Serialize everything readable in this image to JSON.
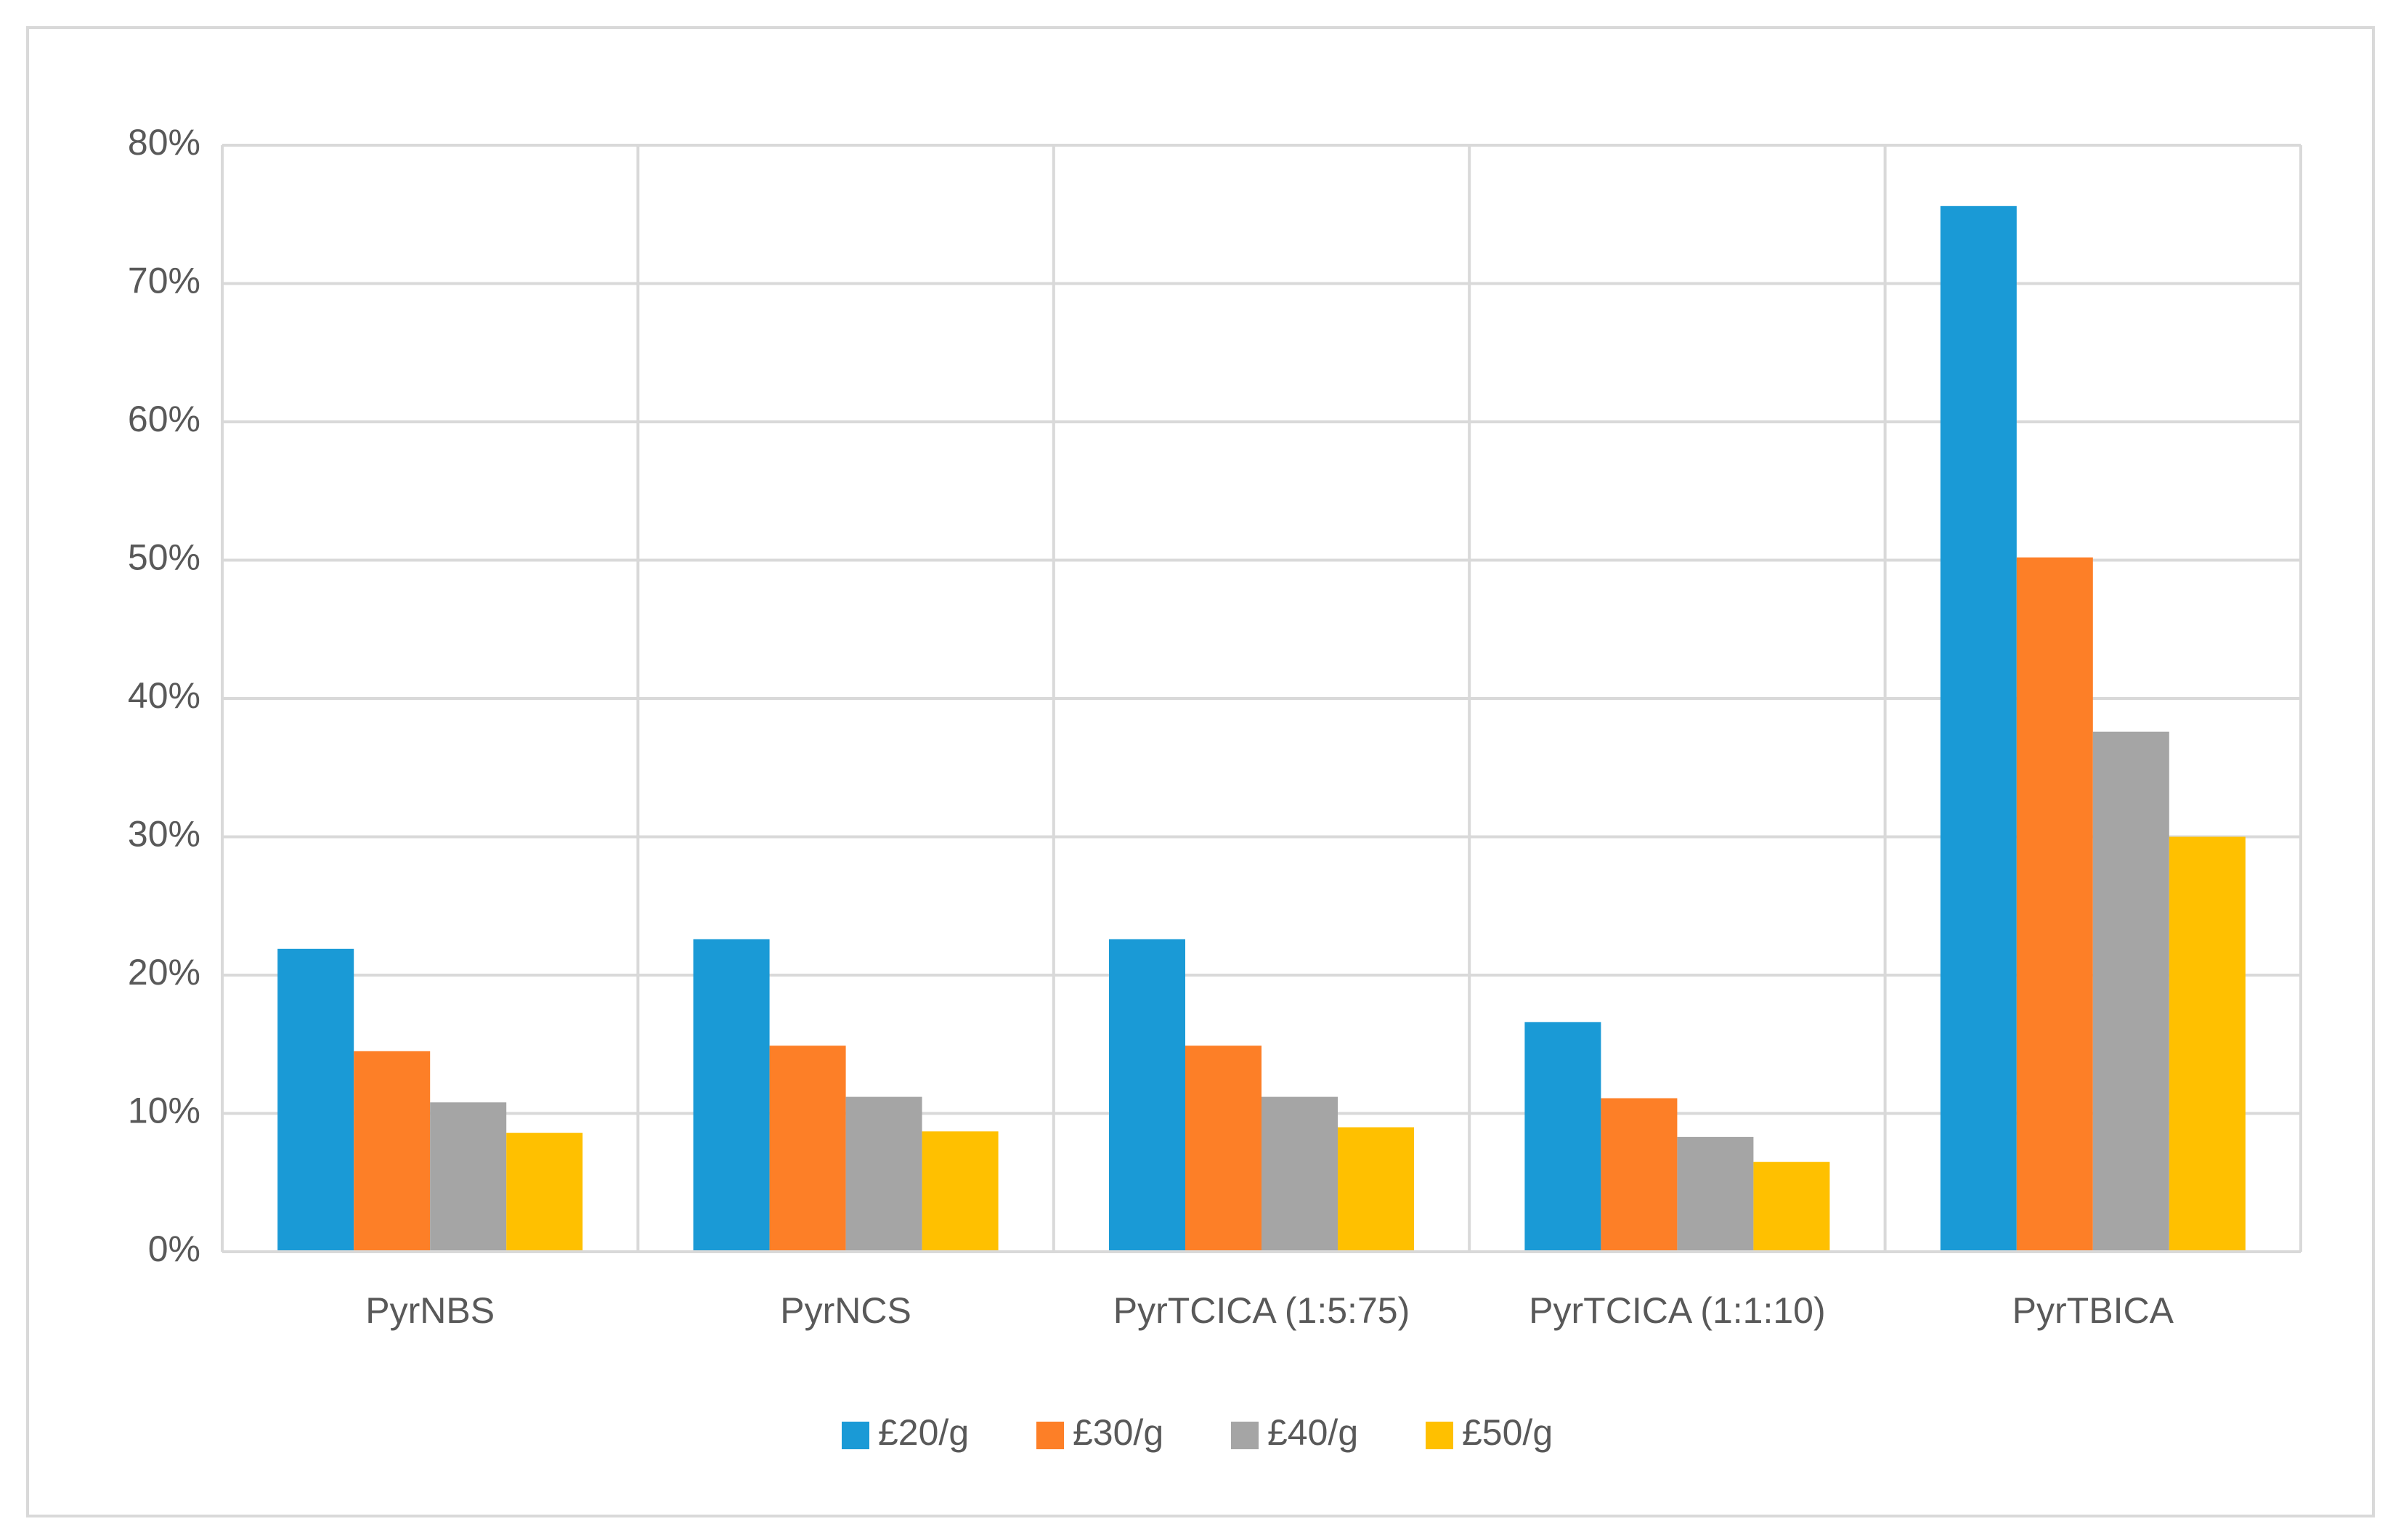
{
  "chart_data": {
    "type": "bar",
    "categories": [
      "PyrNBS",
      "PyrNCS",
      "PyrTCICA (1:5:75)",
      "PyrTCICA (1:1:10)",
      "PyrTBICA"
    ],
    "series": [
      {
        "name": "£20/g",
        "color": "#1a9ad6",
        "values": [
          21.9,
          22.6,
          22.6,
          16.6,
          75.6
        ]
      },
      {
        "name": "£30/g",
        "color": "#fd7f27",
        "values": [
          14.5,
          14.9,
          14.9,
          11.1,
          50.2
        ]
      },
      {
        "name": "£40/g",
        "color": "#a5a5a5",
        "values": [
          10.8,
          11.2,
          11.2,
          8.3,
          37.6
        ]
      },
      {
        "name": "£50/g",
        "color": "#ffc000",
        "values": [
          8.6,
          8.7,
          9.0,
          6.5,
          30.0
        ]
      }
    ],
    "ylim": [
      0,
      80
    ],
    "yticks": [
      {
        "value": 0,
        "label": "0%"
      },
      {
        "value": 10,
        "label": "10%"
      },
      {
        "value": 20,
        "label": "20%"
      },
      {
        "value": 30,
        "label": "30%"
      },
      {
        "value": 40,
        "label": "40%"
      },
      {
        "value": 50,
        "label": "50%"
      },
      {
        "value": 60,
        "label": "60%"
      },
      {
        "value": 70,
        "label": "70%"
      },
      {
        "value": 80,
        "label": "80%"
      }
    ],
    "grid": true,
    "legend": "bottom"
  }
}
